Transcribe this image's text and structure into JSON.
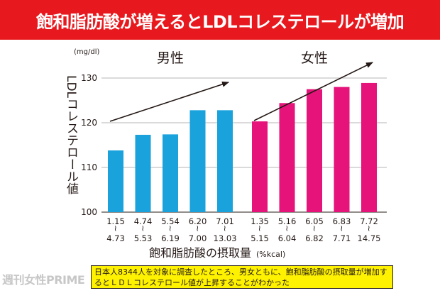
{
  "banner": {
    "title": "飽和脂肪酸が増えるとLDLコレステロールが増加"
  },
  "chart_data": {
    "type": "bar",
    "unit_label": "(mg/dl)",
    "ylabel": "LDLコレステロール値",
    "xlabel": "飽和脂肪酸の摂取量",
    "xlabel_unit": "(%kcal)",
    "ylim": [
      100,
      130
    ],
    "yticks": [
      100,
      110,
      120,
      130
    ],
    "grid": true,
    "groups": [
      {
        "name": "男性",
        "color": "#1aa2dc",
        "values": [
          113.8,
          117.3,
          117.4,
          122.8,
          122.8
        ],
        "range_lo": [
          "1.15",
          "4.74",
          "5.54",
          "6.20",
          "7.01"
        ],
        "range_hi": [
          "4.73",
          "5.53",
          "6.19",
          "7.00",
          "13.03"
        ]
      },
      {
        "name": "女性",
        "color": "#e5137a",
        "values": [
          120.3,
          124.4,
          127.5,
          128.0,
          128.9
        ],
        "range_lo": [
          "1.35",
          "5.16",
          "6.05",
          "6.83",
          "7.72"
        ],
        "range_hi": [
          "5.15",
          "6.04",
          "6.82",
          "7.71",
          "14.75"
        ]
      }
    ]
  },
  "caption": "日本人8344人を対象に調査したところ、男女ともに、飽和脂肪酸の摂取量が増加するとＬＤＬコレステロール値が上昇することがわかった",
  "watermark": "週刊女性PRIME"
}
